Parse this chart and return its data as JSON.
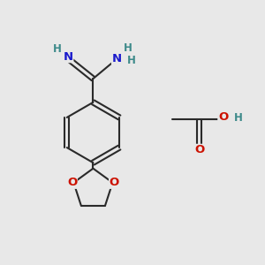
{
  "bg_color": "#e8e8e8",
  "bond_color": "#2a2a2a",
  "N_color": "#3d8a8a",
  "O_color": "#cc1100",
  "blue_color": "#1a1acc",
  "H_color": "#3d8a8a",
  "fig_width": 3.0,
  "fig_height": 3.0,
  "dpi": 100,
  "xlim": [
    0,
    10
  ],
  "ylim": [
    0,
    10
  ]
}
